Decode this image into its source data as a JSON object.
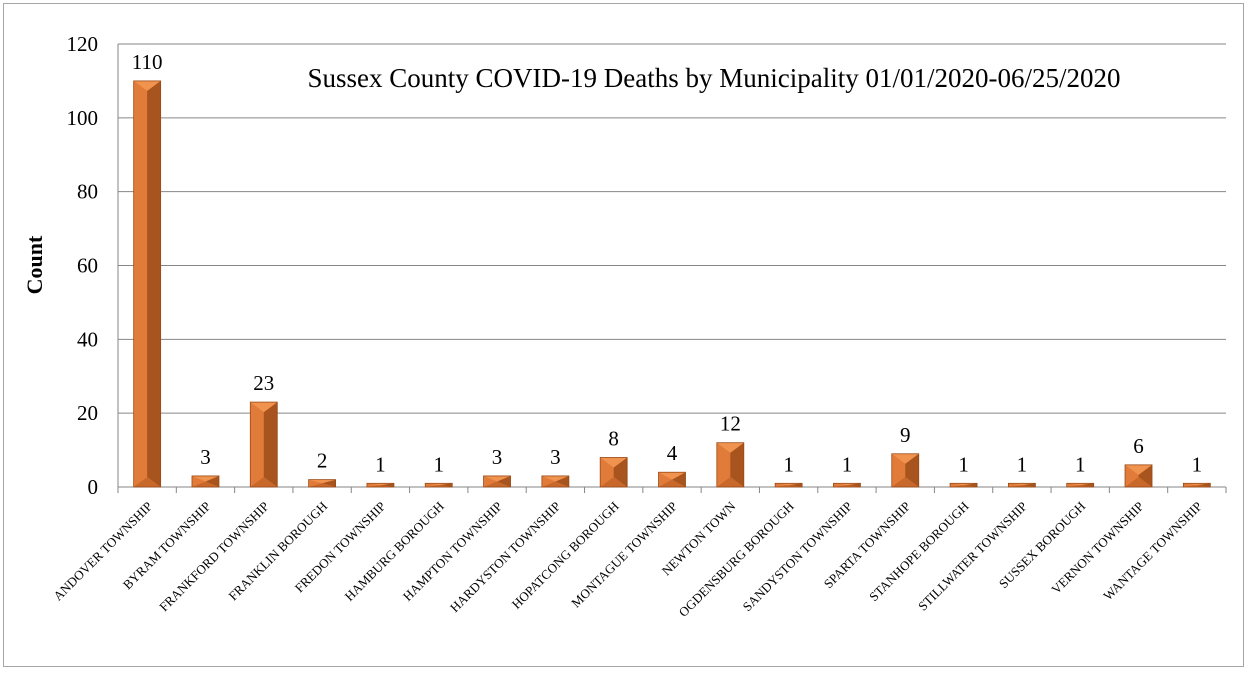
{
  "chart_data": {
    "type": "bar",
    "title": "Sussex County COVID-19 Deaths by Municipality 01/01/2020-06/25/2020",
    "xlabel": "",
    "ylabel": "Count",
    "ylim": [
      0,
      120
    ],
    "yticks": [
      0,
      20,
      40,
      60,
      80,
      100,
      120
    ],
    "grid": true,
    "bar_color": "#e07b39",
    "bar_dark_color": "#a8541e",
    "categories": [
      "ANDOVER TOWNSHIP",
      "BYRAM TOWNSHIP",
      "FRANKFORD TOWNSHIP",
      "FRANKLIN BOROUGH",
      "FREDON TOWNSHIP",
      "HAMBURG BOROUGH",
      "HAMPTON TOWNSHIP",
      "HARDYSTON TOWNSHIP",
      "HOPATCONG BOROUGH",
      "MONTAGUE TOWNSHIP",
      "NEWTON TOWN",
      "OGDENSBURG BOROUGH",
      "SANDYSTON TOWNSHIP",
      "SPARTA TOWNSHIP",
      "STANHOPE BOROUGH",
      "STILLWATER TOWNSHIP",
      "SUSSEX BOROUGH",
      "VERNON TOWNSHIP",
      "WANTAGE TOWNSHIP"
    ],
    "values": [
      110,
      3,
      23,
      2,
      1,
      1,
      3,
      3,
      8,
      4,
      12,
      1,
      1,
      9,
      1,
      1,
      1,
      6,
      1
    ]
  }
}
